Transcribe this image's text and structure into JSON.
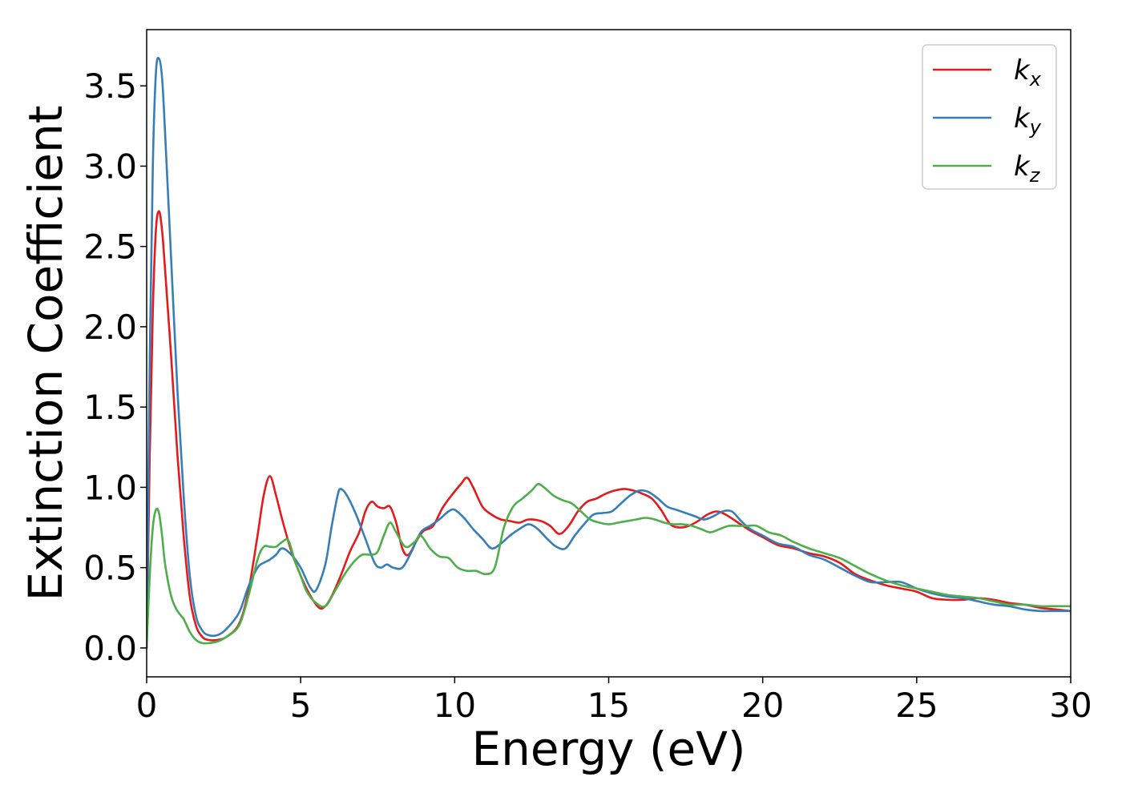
{
  "chart_data": {
    "type": "line",
    "title": "",
    "xlabel": "Energy (eV)",
    "ylabel": "Extinction Coefficient",
    "xlim": [
      0,
      30
    ],
    "ylim": [
      -0.18,
      3.85
    ],
    "xticks": [
      0,
      5,
      10,
      15,
      20,
      25,
      30
    ],
    "xtick_labels": [
      "0",
      "5",
      "10",
      "15",
      "20",
      "25",
      "30"
    ],
    "yticks": [
      0.0,
      0.5,
      1.0,
      1.5,
      2.0,
      2.5,
      3.0,
      3.5
    ],
    "ytick_labels": [
      "0.0",
      "0.5",
      "1.0",
      "1.5",
      "2.0",
      "2.5",
      "3.0",
      "3.5"
    ],
    "grid": false,
    "legend_position": "top-right",
    "series": [
      {
        "name": "k_x",
        "legend_base": "k",
        "legend_sub": "x",
        "color": "#e41a1c",
        "x": [
          0,
          0.1,
          0.2,
          0.3,
          0.4,
          0.5,
          0.6,
          0.8,
          1.0,
          1.2,
          1.4,
          1.6,
          1.8,
          2.0,
          2.3,
          2.6,
          3.0,
          3.3,
          3.6,
          3.8,
          4.0,
          4.2,
          4.4,
          4.7,
          5.0,
          5.3,
          5.6,
          5.8,
          6.0,
          6.3,
          6.6,
          6.9,
          7.1,
          7.3,
          7.5,
          7.7,
          7.9,
          8.1,
          8.3,
          8.5,
          8.8,
          9.0,
          9.3,
          9.6,
          9.9,
          10.2,
          10.4,
          10.6,
          10.9,
          11.2,
          11.5,
          11.8,
          12.1,
          12.4,
          12.8,
          13.1,
          13.4,
          13.7,
          14.0,
          14.3,
          14.6,
          14.9,
          15.2,
          15.5,
          15.8,
          16.1,
          16.4,
          16.7,
          17.0,
          17.3,
          17.6,
          17.9,
          18.2,
          18.5,
          18.8,
          19.2,
          19.6,
          20.0,
          20.5,
          21.0,
          21.5,
          22.0,
          22.5,
          23.0,
          23.5,
          24.0,
          24.5,
          25.0,
          25.5,
          26.0,
          26.5,
          27.0,
          27.5,
          28.0,
          28.5,
          29.0,
          29.5,
          30.0
        ],
        "y": [
          0.0,
          1.2,
          2.1,
          2.6,
          2.72,
          2.6,
          2.35,
          1.8,
          1.2,
          0.7,
          0.32,
          0.14,
          0.07,
          0.05,
          0.05,
          0.07,
          0.15,
          0.35,
          0.7,
          0.95,
          1.07,
          0.95,
          0.8,
          0.6,
          0.45,
          0.33,
          0.25,
          0.26,
          0.32,
          0.45,
          0.6,
          0.72,
          0.85,
          0.91,
          0.88,
          0.87,
          0.88,
          0.78,
          0.62,
          0.58,
          0.68,
          0.73,
          0.76,
          0.87,
          0.95,
          1.02,
          1.06,
          1.0,
          0.88,
          0.83,
          0.8,
          0.79,
          0.78,
          0.8,
          0.79,
          0.76,
          0.71,
          0.76,
          0.85,
          0.91,
          0.93,
          0.96,
          0.98,
          0.99,
          0.98,
          0.96,
          0.93,
          0.86,
          0.77,
          0.75,
          0.76,
          0.79,
          0.83,
          0.85,
          0.83,
          0.78,
          0.73,
          0.69,
          0.64,
          0.62,
          0.59,
          0.57,
          0.53,
          0.46,
          0.42,
          0.39,
          0.37,
          0.35,
          0.31,
          0.3,
          0.3,
          0.31,
          0.3,
          0.28,
          0.27,
          0.25,
          0.24,
          0.23
        ]
      },
      {
        "name": "k_y",
        "legend_base": "k",
        "legend_sub": "y",
        "color": "#377eb8",
        "x": [
          0,
          0.1,
          0.2,
          0.3,
          0.4,
          0.5,
          0.6,
          0.8,
          1.0,
          1.2,
          1.4,
          1.6,
          1.8,
          2.0,
          2.3,
          2.6,
          3.0,
          3.3,
          3.6,
          3.8,
          4.0,
          4.2,
          4.4,
          4.7,
          5.0,
          5.3,
          5.5,
          5.8,
          6.0,
          6.2,
          6.3,
          6.5,
          6.8,
          7.1,
          7.4,
          7.6,
          7.8,
          8.0,
          8.3,
          8.6,
          8.9,
          9.2,
          9.5,
          9.8,
          10.0,
          10.3,
          10.6,
          10.9,
          11.2,
          11.5,
          11.8,
          12.1,
          12.4,
          12.7,
          13.0,
          13.3,
          13.6,
          13.9,
          14.2,
          14.5,
          14.8,
          15.1,
          15.4,
          15.7,
          16.0,
          16.3,
          16.6,
          16.9,
          17.2,
          17.5,
          17.8,
          18.1,
          18.4,
          18.7,
          19.0,
          19.3,
          19.6,
          20.0,
          20.5,
          21.0,
          21.5,
          22.0,
          22.5,
          23.0,
          23.5,
          24.0,
          24.5,
          25.0,
          25.5,
          26.0,
          26.5,
          27.0,
          27.5,
          28.0,
          28.5,
          29.0,
          29.5,
          30.0
        ],
        "y": [
          0.0,
          1.8,
          3.0,
          3.58,
          3.67,
          3.55,
          3.2,
          2.4,
          1.6,
          0.95,
          0.45,
          0.2,
          0.11,
          0.08,
          0.08,
          0.12,
          0.22,
          0.38,
          0.5,
          0.53,
          0.55,
          0.58,
          0.62,
          0.58,
          0.5,
          0.38,
          0.36,
          0.52,
          0.75,
          0.95,
          0.99,
          0.95,
          0.83,
          0.68,
          0.53,
          0.5,
          0.52,
          0.5,
          0.5,
          0.6,
          0.72,
          0.76,
          0.8,
          0.85,
          0.86,
          0.81,
          0.74,
          0.68,
          0.62,
          0.65,
          0.7,
          0.74,
          0.77,
          0.74,
          0.68,
          0.63,
          0.62,
          0.7,
          0.77,
          0.83,
          0.84,
          0.85,
          0.9,
          0.95,
          0.98,
          0.97,
          0.93,
          0.88,
          0.86,
          0.84,
          0.82,
          0.8,
          0.82,
          0.85,
          0.85,
          0.79,
          0.74,
          0.7,
          0.65,
          0.63,
          0.58,
          0.55,
          0.5,
          0.45,
          0.41,
          0.41,
          0.41,
          0.37,
          0.34,
          0.32,
          0.31,
          0.29,
          0.27,
          0.26,
          0.24,
          0.23,
          0.23,
          0.23
        ]
      },
      {
        "name": "k_z",
        "legend_base": "k",
        "legend_sub": "z",
        "color": "#4daf4a",
        "x": [
          0,
          0.1,
          0.2,
          0.3,
          0.4,
          0.5,
          0.6,
          0.8,
          1.0,
          1.2,
          1.4,
          1.6,
          1.8,
          2.0,
          2.3,
          2.6,
          3.0,
          3.3,
          3.6,
          3.8,
          4.0,
          4.2,
          4.4,
          4.6,
          4.8,
          5.0,
          5.2,
          5.5,
          5.8,
          6.1,
          6.4,
          6.7,
          7.0,
          7.3,
          7.5,
          7.7,
          7.9,
          8.1,
          8.4,
          8.7,
          8.9,
          9.2,
          9.5,
          9.8,
          10.1,
          10.4,
          10.7,
          11.0,
          11.3,
          11.6,
          11.9,
          12.2,
          12.5,
          12.7,
          12.9,
          13.2,
          13.5,
          13.8,
          14.1,
          14.4,
          14.7,
          15.0,
          15.3,
          15.6,
          15.9,
          16.2,
          16.5,
          16.8,
          17.1,
          17.4,
          17.7,
          18.0,
          18.3,
          18.6,
          18.9,
          19.2,
          19.5,
          19.8,
          20.2,
          20.6,
          21.0,
          21.5,
          22.0,
          22.5,
          23.0,
          23.5,
          24.0,
          24.5,
          25.0,
          25.5,
          26.0,
          26.5,
          27.0,
          27.5,
          28.0,
          28.5,
          29.0,
          29.5,
          30.0
        ],
        "y": [
          0.0,
          0.45,
          0.75,
          0.86,
          0.84,
          0.7,
          0.52,
          0.32,
          0.23,
          0.18,
          0.1,
          0.05,
          0.03,
          0.03,
          0.04,
          0.07,
          0.14,
          0.32,
          0.55,
          0.63,
          0.63,
          0.63,
          0.66,
          0.67,
          0.55,
          0.45,
          0.35,
          0.28,
          0.26,
          0.35,
          0.45,
          0.53,
          0.58,
          0.58,
          0.6,
          0.7,
          0.78,
          0.72,
          0.63,
          0.66,
          0.7,
          0.62,
          0.57,
          0.56,
          0.5,
          0.48,
          0.48,
          0.46,
          0.5,
          0.75,
          0.88,
          0.93,
          0.98,
          1.02,
          1.0,
          0.95,
          0.92,
          0.9,
          0.85,
          0.8,
          0.78,
          0.77,
          0.78,
          0.79,
          0.8,
          0.81,
          0.8,
          0.78,
          0.77,
          0.77,
          0.76,
          0.74,
          0.72,
          0.74,
          0.76,
          0.76,
          0.76,
          0.76,
          0.72,
          0.7,
          0.66,
          0.62,
          0.59,
          0.56,
          0.51,
          0.46,
          0.42,
          0.39,
          0.37,
          0.35,
          0.33,
          0.32,
          0.31,
          0.29,
          0.27,
          0.27,
          0.26,
          0.26,
          0.26
        ]
      }
    ]
  }
}
